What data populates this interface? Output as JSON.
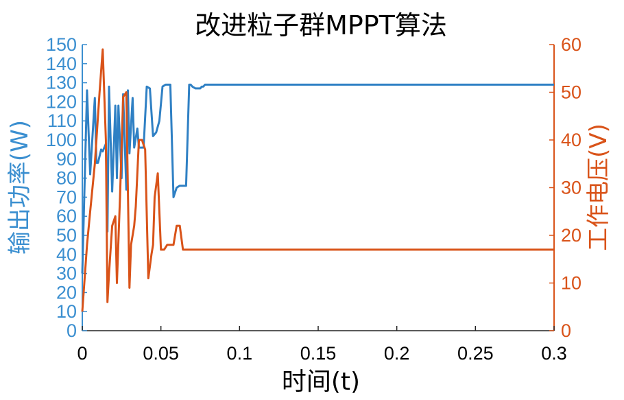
{
  "chart_data": {
    "type": "line",
    "title": "改进粒子群MPPT算法",
    "xlabel": "时间(t)",
    "ylabel_left": "输出功率(W)",
    "ylabel_right": "工作电压(V)",
    "xlim": [
      0,
      0.3
    ],
    "ylim_left": [
      0,
      150
    ],
    "ylim_right": [
      0,
      60
    ],
    "x_ticks": [
      "0",
      "0.05",
      "0.1",
      "0.15",
      "0.2",
      "0.25",
      "0.3"
    ],
    "y_left_ticks": [
      "0",
      "10",
      "20",
      "30",
      "40",
      "50",
      "60",
      "70",
      "80",
      "90",
      "100",
      "110",
      "120",
      "130",
      "140",
      "150"
    ],
    "y_right_ticks": [
      "0",
      "10",
      "20",
      "30",
      "40",
      "50",
      "60"
    ],
    "grid": false,
    "colors": {
      "left_axis": "#3b8fd0",
      "right_axis": "#d95319",
      "power_line": "#2f80c4",
      "voltage_line": "#d95319"
    },
    "series": [
      {
        "axis": "left",
        "x": [
          0,
          0.003,
          0.005,
          0.008,
          0.009,
          0.01,
          0.012,
          0.013,
          0.015,
          0.016,
          0.017,
          0.019,
          0.021,
          0.022,
          0.023,
          0.025,
          0.026,
          0.028,
          0.029,
          0.03,
          0.032,
          0.033,
          0.035,
          0.036,
          0.038,
          0.039,
          0.041,
          0.043,
          0.045,
          0.047,
          0.049,
          0.051,
          0.053,
          0.054,
          0.056,
          0.058,
          0.06,
          0.062,
          0.064,
          0.066,
          0.068,
          0.069,
          0.07,
          0.072,
          0.074,
          0.075,
          0.076,
          0.077,
          0.078,
          0.082,
          0.085,
          0.089,
          0.091,
          0.094,
          0.1,
          0.12,
          0.15,
          0.2,
          0.25,
          0.3
        ],
        "values": [
          30,
          126,
          82,
          122,
          88,
          88,
          95,
          94,
          98,
          52,
          128,
          73,
          118,
          80,
          118,
          80,
          124,
          74,
          126,
          93,
          122,
          96,
          106,
          96,
          96,
          96,
          128,
          127,
          102,
          104,
          110,
          128,
          129,
          129,
          129,
          70,
          75,
          76,
          76,
          76,
          129,
          129,
          128,
          127,
          127,
          127,
          128,
          128,
          129,
          129,
          129,
          129,
          129,
          129,
          129,
          129,
          129,
          129,
          129,
          129
        ]
      },
      {
        "axis": "right",
        "x": [
          0,
          0.003,
          0.005,
          0.008,
          0.011,
          0.013,
          0.015,
          0.016,
          0.017,
          0.019,
          0.021,
          0.022,
          0.024,
          0.026,
          0.028,
          0.03,
          0.031,
          0.033,
          0.034,
          0.036,
          0.038,
          0.04,
          0.042,
          0.044,
          0.045,
          0.046,
          0.048,
          0.05,
          0.052,
          0.054,
          0.056,
          0.058,
          0.06,
          0.062,
          0.064,
          0.066,
          0.068,
          0.07,
          0.072,
          0.074,
          0.076,
          0.078,
          0.08,
          0.085,
          0.09,
          0.095,
          0.1,
          0.12,
          0.15,
          0.2,
          0.25,
          0.3
        ],
        "values": [
          4,
          18,
          25,
          35,
          50,
          59,
          40,
          6,
          12,
          22,
          24,
          10,
          28,
          49,
          50,
          9,
          18,
          22,
          26,
          40,
          40,
          38,
          11,
          16,
          18,
          28,
          33,
          17,
          17,
          18,
          18,
          18,
          22,
          22,
          17,
          17,
          17,
          17,
          17,
          17,
          17,
          17,
          17,
          17,
          17,
          17,
          17,
          17,
          17,
          17,
          17,
          17
        ]
      }
    ]
  }
}
